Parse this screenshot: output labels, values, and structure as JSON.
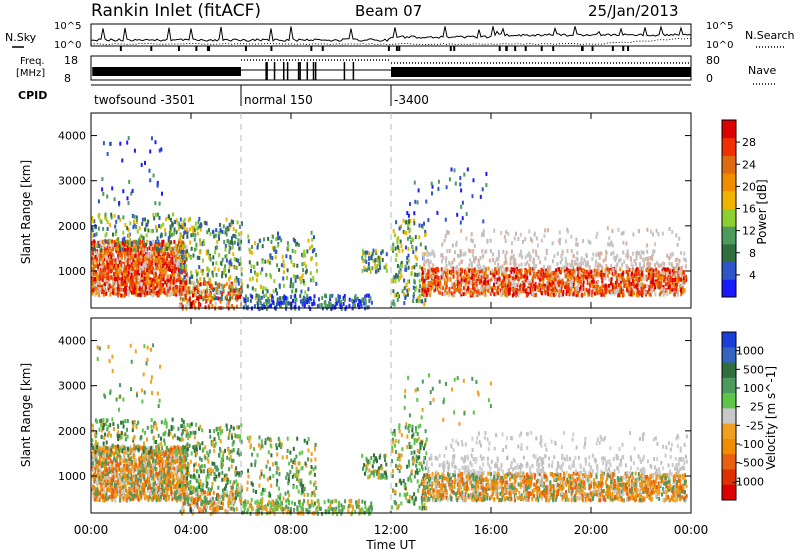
{
  "header": {
    "station": "Rankin Inlet (fitACF)",
    "beam": "Beam 07",
    "date": "25/Jan/2013"
  },
  "nsky_panel": {
    "left_label": "N.Sky",
    "right_label": "N.Search",
    "left_ticks": [
      "10^5",
      "10^0"
    ],
    "right_ticks": [
      "10^5",
      "10^0"
    ]
  },
  "freq_panel": {
    "left_label_line1": "Freq.",
    "left_label_line2": "[MHz]",
    "left_ticks": [
      "18",
      "8"
    ],
    "right_label": "Nave",
    "right_ticks": [
      "80",
      "0"
    ]
  },
  "cpid": {
    "label": "CPID",
    "segments": [
      {
        "label": "twofsound -3501",
        "start_h": 0,
        "end_h": 6
      },
      {
        "label": "normal 150",
        "start_h": 6,
        "end_h": 12
      },
      {
        "label": "-3400",
        "start_h": 12,
        "end_h": 24
      }
    ]
  },
  "chart_data": [
    {
      "type": "heatmap",
      "title": "",
      "xlabel": "Time UT",
      "ylabel": "Slant Range [km]",
      "xlim": [
        0,
        24
      ],
      "ylim": [
        180,
        4500
      ],
      "x_ticks": [
        "00:00",
        "04:00",
        "08:00",
        "12:00",
        "16:00",
        "20:00",
        "00:00"
      ],
      "y_ticks": [
        "1000",
        "2000",
        "3000",
        "4000"
      ],
      "colorbar": {
        "label": "Power [dB]",
        "tick_labels": [
          "4",
          "8",
          "12",
          "16",
          "20",
          "24",
          "28"
        ],
        "range": [
          0,
          30
        ],
        "colors": [
          "#1a1aff",
          "#2f56c8",
          "#2f6f3f",
          "#4d9a5d",
          "#8ccf2f",
          "#f0b400",
          "#f08c00",
          "#e06a10",
          "#f03000",
          "#dd0000"
        ]
      }
    },
    {
      "type": "heatmap",
      "title": "",
      "xlabel": "Time UT",
      "ylabel": "Slant Range [km]",
      "xlim": [
        0,
        24
      ],
      "ylim": [
        180,
        4500
      ],
      "x_ticks": [
        "00:00",
        "04:00",
        "08:00",
        "12:00",
        "16:00",
        "20:00",
        "00:00"
      ],
      "y_ticks": [
        "1000",
        "2000",
        "3000",
        "4000"
      ],
      "colorbar": {
        "label": "Velocity [m s^-1]",
        "tick_labels": [
          "1000",
          "500",
          "100",
          "25",
          "-25",
          "-100",
          "-500",
          "-1000"
        ],
        "range": [
          -1000,
          1000
        ],
        "colors": [
          "#1a3fd8",
          "#3463c0",
          "#2f6f3f",
          "#4d9a5d",
          "#5ec44a",
          "#c8c8c8",
          "#f0a020",
          "#f08c00",
          "#e86010",
          "#e03000",
          "#dd0000"
        ]
      }
    }
  ],
  "x_axis": {
    "tick_labels": [
      "00:00",
      "04:00",
      "08:00",
      "12:00",
      "16:00",
      "20:00",
      "00:00"
    ],
    "label": "Time UT"
  }
}
